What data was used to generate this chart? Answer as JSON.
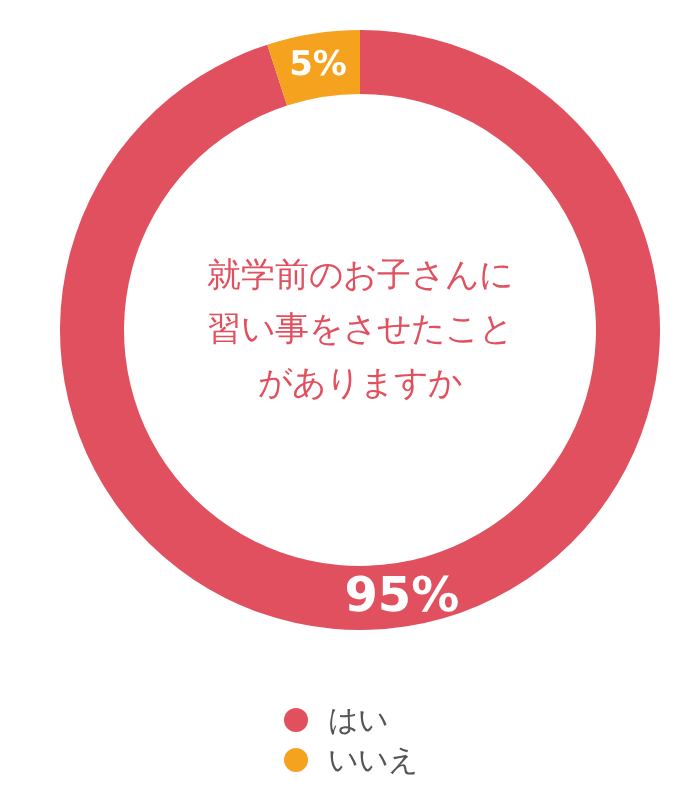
{
  "chart_data": {
    "type": "donut",
    "title": "就学前のお子さんに習い事をさせたことがありますか",
    "categories": [
      "はい",
      "いいえ"
    ],
    "values": [
      95,
      5
    ],
    "colors": [
      "#e1505f",
      "#f5a31f"
    ],
    "value_labels": [
      "95%",
      "5%"
    ],
    "legend": "bottom"
  }
}
